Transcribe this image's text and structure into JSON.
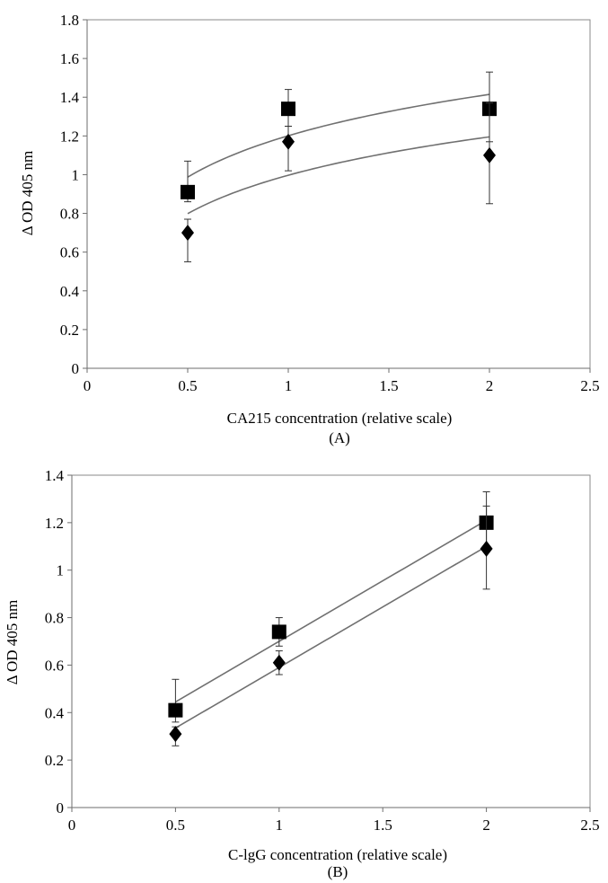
{
  "chart_data": [
    {
      "type": "scatter",
      "panel_label": "(A)",
      "xlabel": "CA215 concentration (relative scale)",
      "ylabel": "Δ OD 405 nm",
      "xlim": [
        0,
        2.5
      ],
      "ylim": [
        0,
        1.8
      ],
      "xticks": [
        0,
        0.5,
        1,
        1.5,
        2,
        2.5
      ],
      "yticks": [
        0,
        0.2,
        0.4,
        0.6,
        0.8,
        1,
        1.2,
        1.4,
        1.6,
        1.8
      ],
      "grid": false,
      "series": [
        {
          "marker": "square",
          "x": [
            0.5,
            1,
            2
          ],
          "y": [
            0.91,
            1.34,
            1.34
          ],
          "err_hi": [
            1.07,
            1.44,
            1.53
          ],
          "err_lo": [
            0.86,
            1.25,
            1.17
          ],
          "trend": {
            "type": "logarithmic",
            "a": 1.201,
            "b": 0.308
          }
        },
        {
          "marker": "diamond",
          "x": [
            0.5,
            1,
            2
          ],
          "y": [
            0.7,
            1.17,
            1.1
          ],
          "err_hi": [
            0.77,
            1.25,
            1.37
          ],
          "err_lo": [
            0.55,
            1.02,
            0.85
          ],
          "trend": {
            "type": "logarithmic",
            "a": 0.997,
            "b": 0.286
          }
        }
      ]
    },
    {
      "type": "scatter",
      "panel_label": "(B)",
      "xlabel": "C-lgG concentration (relative scale)",
      "ylabel": "Δ OD 405 nm",
      "xlim": [
        0,
        2.5
      ],
      "ylim": [
        0,
        1.4
      ],
      "xticks": [
        0,
        0.5,
        1,
        1.5,
        2,
        2.5
      ],
      "yticks": [
        0,
        0.2,
        0.4,
        0.6,
        0.8,
        1,
        1.2,
        1.4
      ],
      "grid": false,
      "series": [
        {
          "marker": "square",
          "x": [
            0.5,
            1,
            2
          ],
          "y": [
            0.41,
            0.74,
            1.2
          ],
          "err_hi": [
            0.54,
            0.8,
            1.33
          ],
          "err_lo": [
            0.36,
            0.68,
            1.08
          ],
          "trend": {
            "type": "linear",
            "slope": 0.51,
            "intercept": 0.19
          }
        },
        {
          "marker": "diamond",
          "x": [
            0.5,
            1,
            2
          ],
          "y": [
            0.31,
            0.61,
            1.09
          ],
          "err_hi": [
            0.34,
            0.66,
            1.27
          ],
          "err_lo": [
            0.26,
            0.56,
            0.92
          ],
          "trend": {
            "type": "linear",
            "slope": 0.51,
            "intercept": 0.08
          }
        }
      ]
    }
  ]
}
